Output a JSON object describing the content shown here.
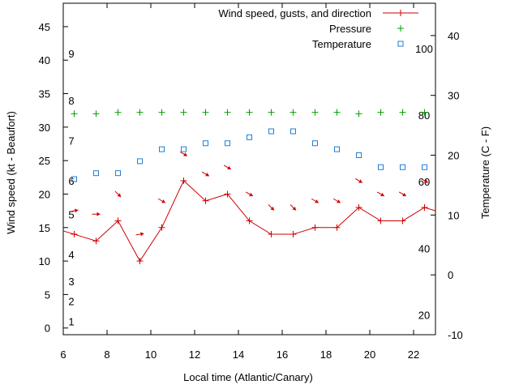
{
  "chart_data": {
    "type": "line",
    "xlabel": "Local time (Atlantic/Canary)",
    "ylabel": "Wind speed (kt - Beaufort)",
    "y2label": "Temperature (C - F)",
    "xlim": [
      6,
      23
    ],
    "ylim": [
      -1,
      48.5
    ],
    "y2lim": [
      -10,
      45.4
    ],
    "x_ticks": [
      6,
      8,
      10,
      12,
      14,
      16,
      18,
      20,
      22
    ],
    "y_ticks": [
      0,
      5,
      10,
      15,
      20,
      25,
      30,
      35,
      40,
      45
    ],
    "y2_ticks": [
      -10,
      0,
      10,
      20,
      30,
      40
    ],
    "beaufort_labels": [
      {
        "text": "1",
        "y": 1
      },
      {
        "text": "2",
        "y": 4
      },
      {
        "text": "3",
        "y": 7
      },
      {
        "text": "4",
        "y": 11
      },
      {
        "text": "5",
        "y": 17
      },
      {
        "text": "6",
        "y": 22
      },
      {
        "text": "7",
        "y": 28
      },
      {
        "text": "8",
        "y": 34
      },
      {
        "text": "9",
        "y": 41
      }
    ],
    "fahrenheit_labels": [
      {
        "text": "20",
        "c": -6.7
      },
      {
        "text": "40",
        "c": 4.4
      },
      {
        "text": "60",
        "c": 15.6
      },
      {
        "text": "80",
        "c": 26.7
      },
      {
        "text": "100",
        "c": 37.8
      }
    ],
    "legend_position": "top-right",
    "series": [
      {
        "name": "Wind speed, gusts, and direction",
        "color": "#cc0000",
        "x": [
          6,
          6.5,
          7.5,
          8.5,
          9.5,
          10.5,
          11.5,
          12.5,
          13.5,
          14.5,
          15.5,
          16.5,
          17.5,
          18.5,
          19.5,
          20.5,
          21.5,
          22.5,
          23
        ],
        "values": [
          14.5,
          14,
          13,
          16,
          10,
          15,
          22,
          19,
          20,
          16,
          14,
          14,
          15,
          15,
          18,
          16,
          16,
          18,
          17.5
        ]
      },
      {
        "name": "Pressure",
        "color": "#00a000",
        "x": [
          6.5,
          7.5,
          8.5,
          9.5,
          10.5,
          11.5,
          12.5,
          13.5,
          14.5,
          15.5,
          16.5,
          17.5,
          18.5,
          19.5,
          20.5,
          21.5,
          22.5
        ],
        "values": [
          32,
          32,
          32.2,
          32.2,
          32.2,
          32.2,
          32.2,
          32.2,
          32.2,
          32.2,
          32.2,
          32.2,
          32.2,
          32,
          32.2,
          32.2,
          32.2
        ]
      },
      {
        "name": "Temperature",
        "color": "#1e7fd4",
        "x": [
          6.5,
          7.5,
          8.5,
          9.5,
          10.5,
          11.5,
          12.5,
          13.5,
          14.5,
          15.5,
          16.5,
          17.5,
          18.5,
          19.5,
          20.5,
          21.5,
          22.5
        ],
        "values": [
          16,
          17,
          17,
          19,
          21,
          21,
          22,
          22,
          23,
          24,
          24,
          22,
          21,
          20,
          18,
          18,
          18
        ]
      }
    ],
    "wind_direction_arrows": {
      "color": "#cc0000",
      "x": [
        6.5,
        7.5,
        8.5,
        9.5,
        10.5,
        11.5,
        12.5,
        13.5,
        14.5,
        15.5,
        16.5,
        17.5,
        18.5,
        19.5,
        20.5,
        21.5,
        22.5
      ],
      "y": [
        17.5,
        17,
        20,
        14,
        19,
        26,
        23,
        24,
        20,
        18,
        18,
        19,
        19,
        22,
        20,
        20,
        22
      ],
      "to_direction_deg": [
        80,
        90,
        135,
        80,
        120,
        120,
        120,
        120,
        120,
        135,
        135,
        120,
        120,
        120,
        120,
        120,
        120
      ]
    }
  }
}
